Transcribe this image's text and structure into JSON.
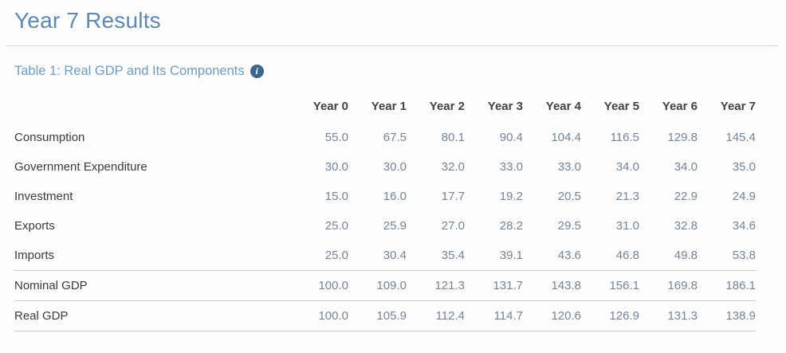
{
  "page": {
    "title": "Year 7 Results"
  },
  "table": {
    "caption": "Table 1: Real GDP and Its Components",
    "info_icon": "info-circle",
    "info_glyph": "i",
    "columns": [
      "Year 0",
      "Year 1",
      "Year 2",
      "Year 3",
      "Year 4",
      "Year 5",
      "Year 6",
      "Year 7"
    ],
    "rows": [
      {
        "label": "Consumption",
        "values": [
          "55.0",
          "67.5",
          "80.1",
          "90.4",
          "104.4",
          "116.5",
          "129.8",
          "145.4"
        ]
      },
      {
        "label": "Government Expenditure",
        "values": [
          "30.0",
          "30.0",
          "32.0",
          "33.0",
          "33.0",
          "34.0",
          "34.0",
          "35.0"
        ]
      },
      {
        "label": "Investment",
        "values": [
          "15.0",
          "16.0",
          "17.7",
          "19.2",
          "20.5",
          "21.3",
          "22.9",
          "24.9"
        ]
      },
      {
        "label": "Exports",
        "values": [
          "25.0",
          "25.9",
          "27.0",
          "28.2",
          "29.5",
          "31.0",
          "32.8",
          "34.6"
        ]
      },
      {
        "label": "Imports",
        "values": [
          "25.0",
          "30.4",
          "35.4",
          "39.1",
          "43.6",
          "46.8",
          "49.8",
          "53.8"
        ]
      },
      {
        "label": "Nominal GDP",
        "values": [
          "100.0",
          "109.0",
          "121.3",
          "131.7",
          "143.8",
          "156.1",
          "169.8",
          "186.1"
        ],
        "divider_above": true
      },
      {
        "label": "Real GDP",
        "values": [
          "100.0",
          "105.9",
          "112.4",
          "114.7",
          "120.6",
          "126.9",
          "131.3",
          "138.9"
        ],
        "divider_above": true,
        "divider_below": true
      }
    ]
  },
  "colors": {
    "title": "#5d89b3",
    "caption": "#6f9cc3",
    "info_icon_bg": "#3e658c",
    "column_header": "#434345",
    "row_label": "#3b3b3d",
    "value": "#74849a",
    "page_divider": "#d4d4d6",
    "row_rule": "#c9cacc",
    "background": "#fdfdfe"
  }
}
